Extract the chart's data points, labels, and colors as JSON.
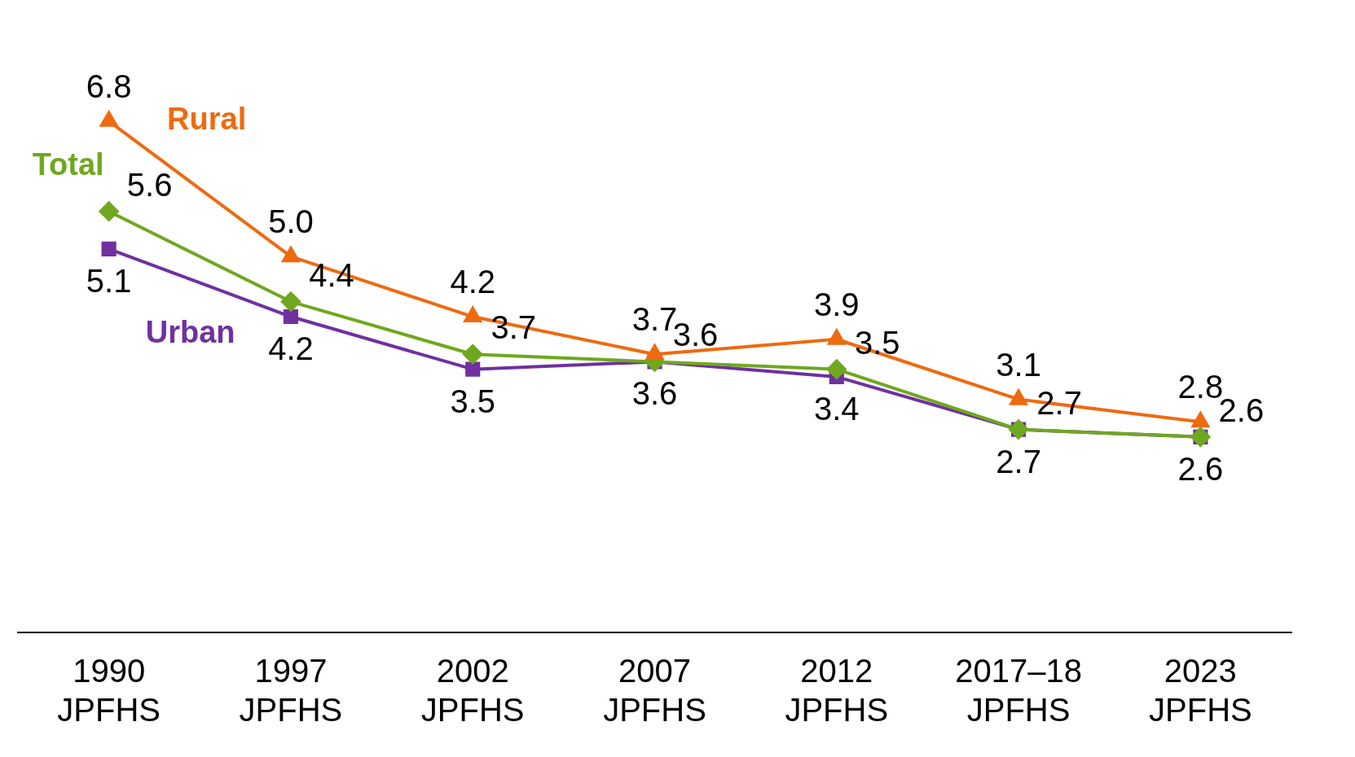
{
  "chart_data": {
    "type": "line",
    "categories": [
      "1990 JPFHS",
      "1997 JPFHS",
      "2002 JPFHS",
      "2007 JPFHS",
      "2012 JPFHS",
      "2017–18 JPFHS",
      "2023 JPFHS"
    ],
    "series": [
      {
        "name": "Rural",
        "color": "#ee6a10",
        "marker": "triangle",
        "values": [
          6.8,
          5.0,
          4.2,
          3.7,
          3.9,
          3.1,
          2.8
        ],
        "value_labels": [
          "6.8",
          "5.0",
          "4.2",
          "3.7",
          "3.9",
          "3.1",
          "2.8"
        ]
      },
      {
        "name": "Total",
        "color": "#6fa81e",
        "marker": "diamond",
        "values": [
          5.6,
          4.4,
          3.7,
          3.6,
          3.5,
          2.7,
          2.6
        ],
        "value_labels": [
          "5.6",
          "4.4",
          "3.7",
          "3.6",
          "3.5",
          "2.7",
          "2.6"
        ]
      },
      {
        "name": "Urban",
        "color": "#7030a0",
        "marker": "square",
        "values": [
          5.1,
          4.2,
          3.5,
          3.6,
          3.4,
          2.7,
          2.6
        ],
        "value_labels": [
          "5.1",
          "4.2",
          "3.5",
          "3.6",
          "3.4",
          "2.7",
          "2.6"
        ]
      }
    ],
    "tick_labels": "x",
    "grid": false,
    "legend": false,
    "line_style": "solid"
  }
}
